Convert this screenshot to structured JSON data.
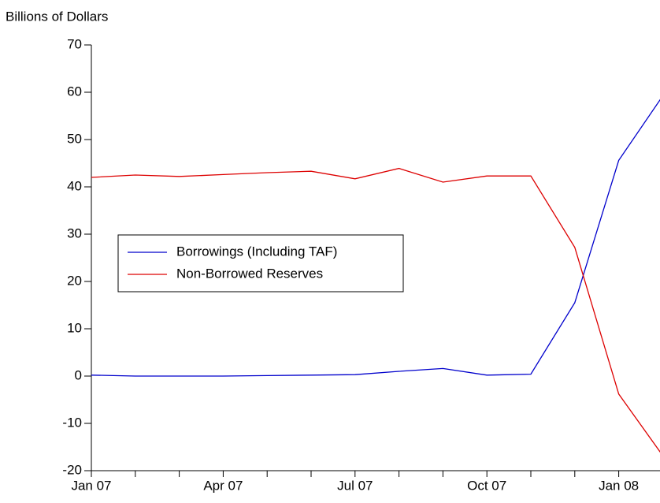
{
  "chart_data": {
    "type": "line",
    "y_label": "Billions of Dollars",
    "categories": [
      "Jan 07",
      null,
      null,
      "Apr 07",
      null,
      null,
      "Jul 07",
      null,
      null,
      "Oct 07",
      null,
      null,
      "Jan 08",
      null
    ],
    "series": [
      {
        "name": "Borrowings (Including TAF)",
        "color": "#0000cc",
        "values": [
          0.2,
          0,
          0,
          0,
          0.1,
          0.2,
          0.3,
          1.0,
          1.6,
          0.2,
          0.4,
          15.5,
          45.6,
          59.2
        ]
      },
      {
        "name": "Non-Borrowed Reserves",
        "color": "#dd0000",
        "values": [
          42.0,
          42.5,
          42.2,
          42.6,
          43.0,
          43.3,
          41.7,
          43.9,
          41.0,
          42.3,
          42.3,
          27.2,
          -3.8,
          -16.8
        ]
      }
    ],
    "ylim": [
      -20,
      70
    ],
    "yticks": [
      -20,
      -10,
      0,
      10,
      20,
      30,
      40,
      50,
      60,
      70
    ],
    "grid": false,
    "legend": "center-left"
  }
}
